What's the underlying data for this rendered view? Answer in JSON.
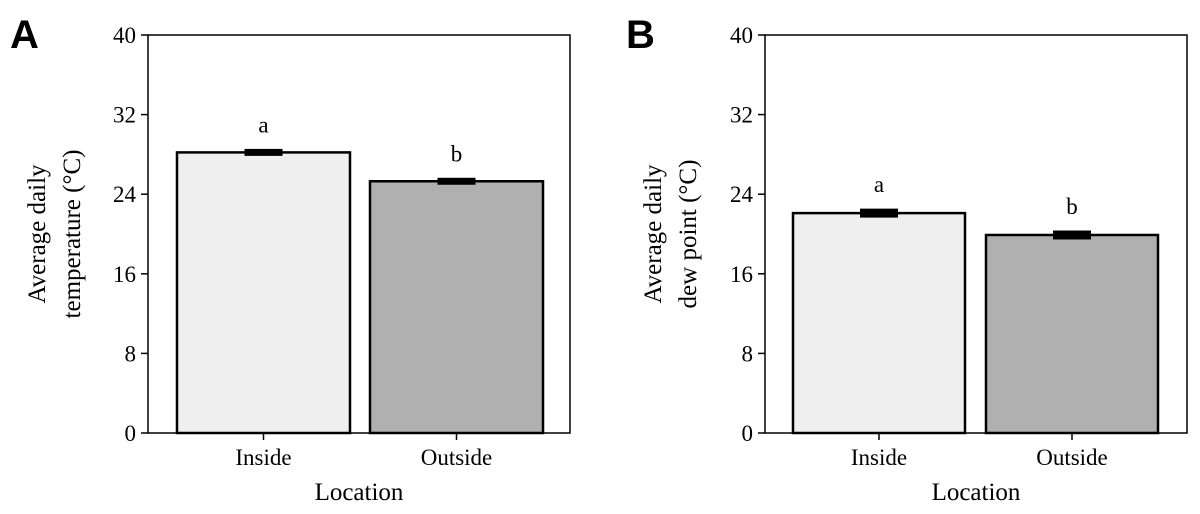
{
  "chart_data": [
    {
      "panel": "A",
      "type": "bar",
      "categories": [
        "Inside",
        "Outside"
      ],
      "values": [
        28.2,
        25.3
      ],
      "errors": [
        0.2,
        0.2
      ],
      "significance_letters": [
        "a",
        "b"
      ],
      "bar_colors": [
        "#efefef",
        "#b0b0b0"
      ],
      "xlabel": "Location",
      "ylabel_lines": [
        "Average daily",
        "temperature (°C)"
      ],
      "ylim": [
        0,
        40
      ],
      "yticks": [
        "0",
        "8",
        "16",
        "24",
        "32",
        "40"
      ],
      "grid": false
    },
    {
      "panel": "B",
      "type": "bar",
      "categories": [
        "Inside",
        "Outside"
      ],
      "values": [
        22.1,
        19.9
      ],
      "errors": [
        0.3,
        0.3
      ],
      "significance_letters": [
        "a",
        "b"
      ],
      "bar_colors": [
        "#efefef",
        "#b0b0b0"
      ],
      "xlabel": "Location",
      "ylabel_lines": [
        "Average daily",
        "dew point (°C)"
      ],
      "ylim": [
        0,
        40
      ],
      "yticks": [
        "0",
        "8",
        "16",
        "24",
        "32",
        "40"
      ],
      "grid": false
    }
  ]
}
